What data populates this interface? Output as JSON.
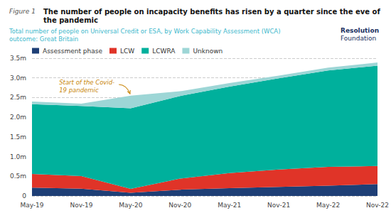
{
  "chart_data": {
    "type": "area",
    "stacked": true,
    "figure_label": "Figure 1",
    "title": "The number of people on incapacity benefits has risen by a quarter since the eve of the pandemic",
    "subtitle": [
      "Total number of people on Universal Credit or ESA, by Work Capability Assessment (WCA)",
      "outcome: Great Britain"
    ],
    "branding": [
      "Resolution",
      "Foundation"
    ],
    "categories": [
      "May-19",
      "Nov-19",
      "May-20",
      "Nov-20",
      "May-21",
      "Nov-21",
      "May-22",
      "Nov-22"
    ],
    "series": [
      {
        "name": "Assessment phase",
        "color": "#1e3f76",
        "values": [
          0.21,
          0.185,
          0.08,
          0.16,
          0.2,
          0.23,
          0.26,
          0.3
        ]
      },
      {
        "name": "LCW",
        "color": "#e03428",
        "values": [
          0.35,
          0.32,
          0.1,
          0.28,
          0.38,
          0.44,
          0.48,
          0.46
        ]
      },
      {
        "name": "LCWRA",
        "color": "#00b09c",
        "values": [
          1.77,
          1.78,
          2.05,
          2.1,
          2.2,
          2.32,
          2.45,
          2.55
        ]
      },
      {
        "name": "Unknown",
        "color": "#9dd6d6",
        "values": [
          0.07,
          0.06,
          0.32,
          0.12,
          0.09,
          0.07,
          0.07,
          0.08
        ]
      }
    ],
    "ylim": [
      0,
      3.5
    ],
    "yticks": [
      0,
      {
        "value": 0.5,
        "label": "0.5m"
      },
      {
        "value": 1.0,
        "label": "1.0m"
      },
      {
        "value": 1.5,
        "label": "1.5m"
      },
      {
        "value": 2.0,
        "label": "2.0m"
      },
      {
        "value": 2.5,
        "label": "2.5m"
      },
      {
        "value": 3.0,
        "label": "3.0m"
      },
      {
        "value": 3.5,
        "label": "3.5m"
      }
    ],
    "grid": true,
    "legend": "upper left",
    "annotations": [
      {
        "text": "Start of the Covid-\n19 pandemic",
        "x": "May-20",
        "y": 2.58
      }
    ]
  }
}
